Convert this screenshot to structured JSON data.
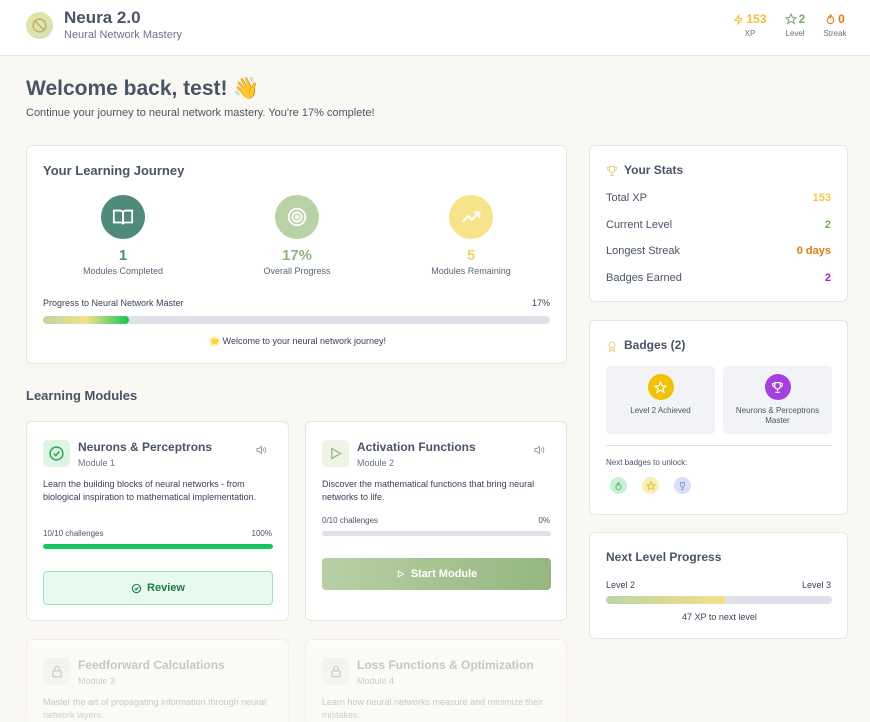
{
  "header": {
    "title": "Neura 2.0",
    "subtitle": "Neural Network Mastery",
    "stats": [
      {
        "value": "153",
        "label": "XP",
        "color": "#f1c232"
      },
      {
        "value": "2",
        "label": "Level",
        "color": "#7fa86c"
      },
      {
        "value": "0",
        "label": "Streak",
        "color": "#e8780f"
      }
    ]
  },
  "welcome": {
    "title": "Welcome back, test! 👋",
    "subtitle": "Continue your journey to neural network mastery. You're 17% complete!"
  },
  "journey": {
    "title": "Your Learning Journey",
    "items": [
      {
        "value": "1",
        "label": "Modules Completed",
        "color": "#4f8a7a"
      },
      {
        "value": "17%",
        "label": "Overall Progress",
        "color": "#8fb582"
      },
      {
        "value": "5",
        "label": "Modules Remaining",
        "color": "#f2d46b"
      }
    ],
    "progress_label": "Progress to Neural Network Master",
    "progress_value": "17%",
    "progress_fraction": 0.17,
    "message": "🌟 Welcome to your neural network journey!"
  },
  "modules_title": "Learning Modules",
  "modules": [
    {
      "title": "Neurons & Perceptrons",
      "number": "Module 1",
      "description": "Learn the building blocks of neural networks - from biological inspiration to mathematical implementation.",
      "challenges": "10/10 challenges",
      "percent": "100%",
      "progress_fraction": 1.0,
      "button": "Review",
      "status": "completed"
    },
    {
      "title": "Activation Functions",
      "number": "Module 2",
      "description": "Discover the mathematical functions that bring neural networks to life.",
      "challenges": "0/10 challenges",
      "percent": "0%",
      "progress_fraction": 0.0,
      "button": "Start Module",
      "status": "available"
    },
    {
      "title": "Feedforward Calculations",
      "number": "Module 3",
      "description": "Master the art of propagating information through neural network layers.",
      "status": "locked"
    },
    {
      "title": "Loss Functions & Optimization",
      "number": "Module 4",
      "description": "Learn how neural networks measure and minimize their mistakes.",
      "status": "locked"
    }
  ],
  "stats": {
    "title": "Your Stats",
    "rows": [
      {
        "label": "Total XP",
        "value": "153",
        "color": "#f2c94c"
      },
      {
        "label": "Current Level",
        "value": "2",
        "color": "#6fae5c"
      },
      {
        "label": "Longest Streak",
        "value": "0 days",
        "color": "#e8780f"
      },
      {
        "label": "Badges Earned",
        "value": "2",
        "color": "#a021d6"
      }
    ]
  },
  "badges": {
    "title": "Badges (2)",
    "earned": [
      {
        "name": "Level 2 Achieved",
        "icon": "star-icon",
        "color": "#f2c200"
      },
      {
        "name": "Neurons & Perceptrons Master",
        "icon": "trophy-icon",
        "color": "#a53fe0"
      }
    ],
    "next_label": "Next badges to unlock:",
    "next": [
      {
        "icon": "flame-icon",
        "color": "#8fe0a8"
      },
      {
        "icon": "star-icon",
        "color": "#f7e58a"
      },
      {
        "icon": "trophy-icon",
        "color": "#b8c8f2"
      }
    ]
  },
  "next_level": {
    "title": "Next Level Progress",
    "from": "Level 2",
    "to": "Level 3",
    "progress_fraction": 0.53,
    "message": "47 XP to next level"
  }
}
